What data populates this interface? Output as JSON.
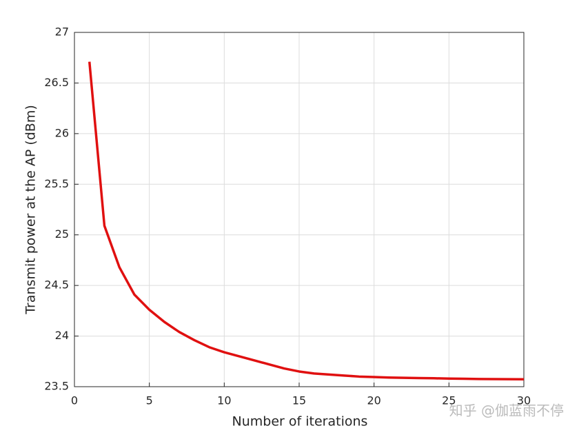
{
  "chart_data": {
    "type": "line",
    "x_label": "Number of iterations",
    "y_label": "Transmit power at the AP (dBm)",
    "x": [
      1,
      2,
      3,
      4,
      5,
      6,
      7,
      8,
      9,
      10,
      11,
      12,
      13,
      14,
      15,
      16,
      17,
      18,
      19,
      20,
      21,
      22,
      23,
      24,
      25,
      26,
      27,
      28,
      29,
      30
    ],
    "series": [
      {
        "color": "#e01010",
        "values": [
          26.71,
          25.09,
          24.68,
          24.41,
          24.26,
          24.14,
          24.04,
          23.96,
          23.89,
          23.84,
          23.8,
          23.76,
          23.72,
          23.68,
          23.65,
          23.63,
          23.62,
          23.61,
          23.6,
          23.595,
          23.59,
          23.588,
          23.585,
          23.583,
          23.58,
          23.578,
          23.576,
          23.575,
          23.574,
          23.573
        ]
      }
    ],
    "xlim": [
      0,
      30
    ],
    "xticks": [
      0,
      5,
      10,
      15,
      20,
      25,
      30
    ],
    "ylim": [
      23.5,
      27
    ],
    "yticks": [
      23.5,
      24,
      24.5,
      25,
      25.5,
      26,
      26.5,
      27
    ],
    "grid": true,
    "watermark": "知乎 @伽蓝雨不停"
  }
}
